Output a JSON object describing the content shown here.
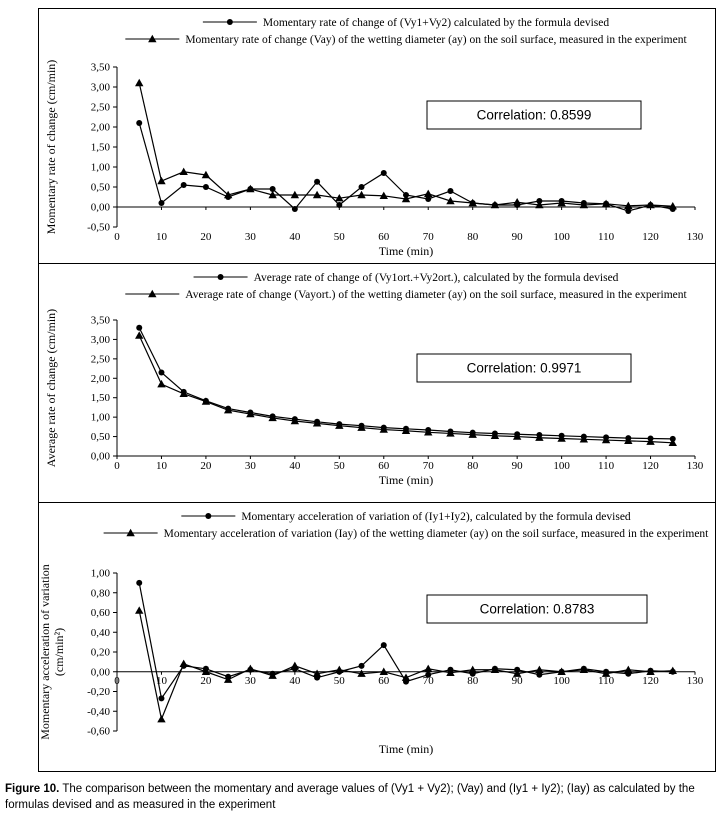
{
  "figure": {
    "caption_label": "Figure 10.",
    "caption_text": "The comparison between the momentary and average values of (Vy1 + Vy2); (Vay) and (Iy1 + Iy2); (Iay) as calculated by the formulas devised and as measured in the experiment"
  },
  "chart_data": [
    {
      "type": "line",
      "xlabel": "Time (min)",
      "ylabel": [
        "Momentary rate of change (cm/min)"
      ],
      "annotation": "Correlation: 0.8599",
      "legend_position": "top",
      "grid": false,
      "xlim": [
        0,
        130
      ],
      "xtick_step": 10,
      "ylim": [
        -0.5,
        3.5
      ],
      "ytick_step": 0.5,
      "x": [
        5,
        10,
        15,
        20,
        25,
        30,
        35,
        40,
        45,
        50,
        55,
        60,
        65,
        70,
        75,
        80,
        85,
        90,
        95,
        100,
        105,
        110,
        115,
        120,
        125
      ],
      "series": [
        {
          "name": "Momentary rate of change of (Vy1+Vy2) calculated by the formula devised",
          "marker": "circle",
          "values": [
            2.1,
            0.1,
            0.55,
            0.5,
            0.25,
            0.45,
            0.45,
            -0.05,
            0.63,
            0.05,
            0.5,
            0.85,
            0.3,
            0.2,
            0.4,
            0.1,
            0.05,
            0.05,
            0.15,
            0.15,
            0.1,
            0.08,
            -0.1,
            0.05,
            -0.05
          ]
        },
        {
          "name": "Momentary rate of change (Vay) of the wetting diameter (ay) on the soil surface, measured in the experiment",
          "marker": "triangle",
          "values": [
            3.1,
            0.65,
            0.88,
            0.8,
            0.3,
            0.45,
            0.3,
            0.3,
            0.3,
            0.22,
            0.3,
            0.28,
            0.2,
            0.33,
            0.15,
            0.1,
            0.05,
            0.12,
            0.05,
            0.1,
            0.05,
            0.08,
            0.03,
            0.05,
            0.02
          ]
        }
      ]
    },
    {
      "type": "line",
      "xlabel": "Time (min)",
      "ylabel": [
        "Average rate of change (cm/min)"
      ],
      "annotation": "Correlation: 0.9971",
      "legend_position": "top",
      "grid": false,
      "xlim": [
        0,
        130
      ],
      "xtick_step": 10,
      "ylim": [
        0,
        3.5
      ],
      "ytick_step": 0.5,
      "x": [
        5,
        10,
        15,
        20,
        25,
        30,
        35,
        40,
        45,
        50,
        55,
        60,
        65,
        70,
        75,
        80,
        85,
        90,
        95,
        100,
        105,
        110,
        115,
        120,
        125
      ],
      "series": [
        {
          "name": "Average rate of change of (Vy1ort.+Vy2ort.), calculated by the formula devised",
          "marker": "circle",
          "values": [
            3.3,
            2.15,
            1.65,
            1.42,
            1.22,
            1.12,
            1.02,
            0.95,
            0.88,
            0.82,
            0.78,
            0.73,
            0.7,
            0.67,
            0.63,
            0.6,
            0.58,
            0.56,
            0.54,
            0.52,
            0.5,
            0.48,
            0.46,
            0.45,
            0.44
          ]
        },
        {
          "name": "Average rate of change (Vayort.) of the wetting diameter (ay) on the soil surface, measured in the experiment",
          "marker": "triangle",
          "values": [
            3.1,
            1.85,
            1.6,
            1.4,
            1.18,
            1.08,
            0.98,
            0.9,
            0.84,
            0.78,
            0.73,
            0.68,
            0.65,
            0.61,
            0.58,
            0.55,
            0.52,
            0.5,
            0.47,
            0.45,
            0.43,
            0.41,
            0.39,
            0.37,
            0.34
          ]
        }
      ]
    },
    {
      "type": "line",
      "xlabel": "Time (min)",
      "ylabel": [
        "Momentary acceleration of variation",
        "(cm/min²)"
      ],
      "annotation": "Correlation: 0.8783",
      "legend_position": "top",
      "grid": false,
      "xlim": [
        0,
        130
      ],
      "xtick_step": 10,
      "ylim": [
        -0.6,
        1.0
      ],
      "ytick_step": 0.2,
      "x": [
        5,
        10,
        15,
        20,
        25,
        30,
        35,
        40,
        45,
        50,
        55,
        60,
        65,
        70,
        75,
        80,
        85,
        90,
        95,
        100,
        105,
        110,
        115,
        120,
        125
      ],
      "series": [
        {
          "name": "Momentary acceleration of variation of (Iy1+Iy2), calculated by the formula devised",
          "marker": "circle",
          "values": [
            0.9,
            -0.27,
            0.06,
            0.03,
            -0.05,
            0.02,
            -0.02,
            0.03,
            -0.06,
            0.0,
            0.06,
            0.27,
            -0.1,
            -0.03,
            0.02,
            -0.02,
            0.03,
            0.02,
            -0.03,
            0.0,
            0.03,
            0.0,
            -0.02,
            0.01,
            0.0
          ]
        },
        {
          "name": "Momentary acceleration of variation (Iay) of the wetting diameter (ay) on the soil surface, measured in the experiment",
          "marker": "triangle",
          "values": [
            0.62,
            -0.48,
            0.08,
            0.0,
            -0.08,
            0.03,
            -0.04,
            0.06,
            -0.02,
            0.02,
            -0.02,
            0.0,
            -0.06,
            0.03,
            -0.01,
            0.02,
            0.02,
            -0.02,
            0.02,
            0.0,
            0.02,
            -0.02,
            0.02,
            0.0,
            0.01
          ]
        }
      ]
    }
  ]
}
